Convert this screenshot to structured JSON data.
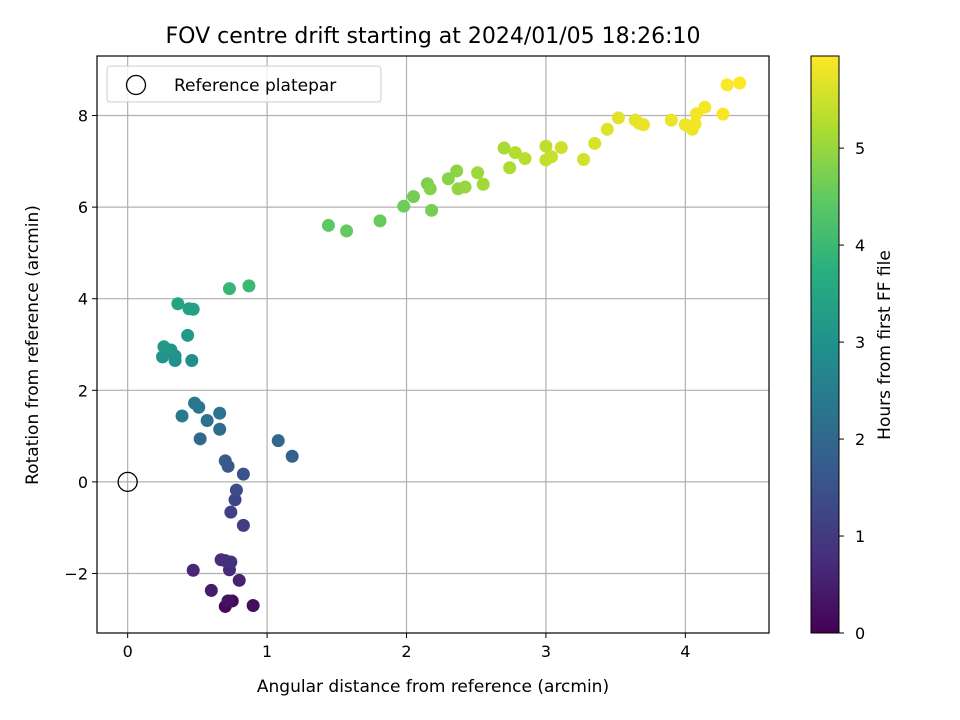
{
  "chart_data": {
    "type": "scatter",
    "title": "FOV centre drift starting at 2024/01/05 18:26:10",
    "xlabel": "Angular distance from reference (arcmin)",
    "ylabel": "Rotation from reference (arcmin)",
    "xlim": [
      -0.22,
      4.6
    ],
    "ylim": [
      -3.3,
      9.3
    ],
    "xticks": [
      0,
      1,
      2,
      3,
      4
    ],
    "yticks": [
      -2,
      0,
      2,
      4,
      6,
      8
    ],
    "grid": true,
    "colormap": "viridis",
    "colorbar": {
      "label": "Hours from first FF file",
      "range": [
        0,
        5.95
      ],
      "ticks": [
        0,
        1,
        2,
        3,
        4,
        5
      ]
    },
    "legend": {
      "placement": "top-left",
      "entries": [
        "Reference platepar"
      ]
    },
    "reference": {
      "x": 0,
      "y": 0
    },
    "series": [
      {
        "points": [
          [
            0.72,
            -2.6,
            0.05
          ],
          [
            0.7,
            -2.72,
            0.1
          ],
          [
            0.75,
            -2.6,
            0.15
          ],
          [
            0.9,
            -2.7,
            0.2
          ],
          [
            0.72,
            -2.6,
            0.3
          ],
          [
            0.6,
            -2.37,
            0.45
          ],
          [
            0.8,
            -2.15,
            0.55
          ],
          [
            0.47,
            -1.93,
            0.65
          ],
          [
            0.73,
            -1.92,
            0.7
          ],
          [
            0.67,
            -1.7,
            0.75
          ],
          [
            0.7,
            -1.72,
            0.8
          ],
          [
            0.74,
            -1.75,
            0.85
          ],
          [
            0.83,
            -0.95,
            1.05
          ],
          [
            0.74,
            -0.66,
            1.15
          ],
          [
            0.77,
            -0.39,
            1.25
          ],
          [
            0.78,
            -0.18,
            1.35
          ],
          [
            0.83,
            0.17,
            1.5
          ],
          [
            0.72,
            0.34,
            1.6
          ],
          [
            0.7,
            0.46,
            1.7
          ],
          [
            1.18,
            0.56,
            1.85
          ],
          [
            1.08,
            0.9,
            1.95
          ],
          [
            0.52,
            0.94,
            2.0
          ],
          [
            0.66,
            1.15,
            2.1
          ],
          [
            0.57,
            1.34,
            2.2
          ],
          [
            0.66,
            1.5,
            2.25
          ],
          [
            0.51,
            1.63,
            2.3
          ],
          [
            0.48,
            1.72,
            2.35
          ],
          [
            0.39,
            1.44,
            2.4
          ],
          [
            0.46,
            2.65,
            2.9
          ],
          [
            0.34,
            2.65,
            2.95
          ],
          [
            0.34,
            2.75,
            3.0
          ],
          [
            0.25,
            2.73,
            3.05
          ],
          [
            0.31,
            2.88,
            3.1
          ],
          [
            0.26,
            2.95,
            3.15
          ],
          [
            0.43,
            3.2,
            3.2
          ],
          [
            0.44,
            3.78,
            3.35
          ],
          [
            0.47,
            3.77,
            3.4
          ],
          [
            0.36,
            3.89,
            3.45
          ],
          [
            0.73,
            4.22,
            3.95
          ],
          [
            0.87,
            4.28,
            4.0
          ],
          [
            1.44,
            5.6,
            4.45
          ],
          [
            1.57,
            5.48,
            4.5
          ],
          [
            1.81,
            5.7,
            4.55
          ],
          [
            1.98,
            6.02,
            4.6
          ],
          [
            2.05,
            6.23,
            4.65
          ],
          [
            2.18,
            5.93,
            4.7
          ],
          [
            2.15,
            6.51,
            4.75
          ],
          [
            2.17,
            6.4,
            4.8
          ],
          [
            2.3,
            6.62,
            4.85
          ],
          [
            2.36,
            6.79,
            4.9
          ],
          [
            2.37,
            6.4,
            4.95
          ],
          [
            2.42,
            6.44,
            5.0
          ],
          [
            2.51,
            6.75,
            5.05
          ],
          [
            2.55,
            6.5,
            5.1
          ],
          [
            2.7,
            7.29,
            5.15
          ],
          [
            2.74,
            6.86,
            5.2
          ],
          [
            2.78,
            7.19,
            5.25
          ],
          [
            2.85,
            7.06,
            5.3
          ],
          [
            3.0,
            7.33,
            5.35
          ],
          [
            3.0,
            7.03,
            5.4
          ],
          [
            3.04,
            7.1,
            5.45
          ],
          [
            3.11,
            7.3,
            5.5
          ],
          [
            3.27,
            7.04,
            5.55
          ],
          [
            3.35,
            7.39,
            5.6
          ],
          [
            3.44,
            7.7,
            5.65
          ],
          [
            3.52,
            7.95,
            5.7
          ],
          [
            3.64,
            7.9,
            5.72
          ],
          [
            3.67,
            7.83,
            5.74
          ],
          [
            3.7,
            7.8,
            5.76
          ],
          [
            3.9,
            7.9,
            5.78
          ],
          [
            4.0,
            7.8,
            5.8
          ],
          [
            4.05,
            7.7,
            5.82
          ],
          [
            4.07,
            7.82,
            5.84
          ],
          [
            4.08,
            8.04,
            5.86
          ],
          [
            4.14,
            8.18,
            5.88
          ],
          [
            4.27,
            8.03,
            5.9
          ],
          [
            4.3,
            8.67,
            5.92
          ],
          [
            4.39,
            8.71,
            5.95
          ]
        ]
      }
    ]
  }
}
